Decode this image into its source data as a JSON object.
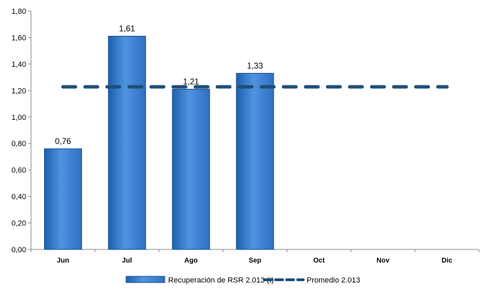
{
  "chart_data": {
    "type": "bar",
    "title": "",
    "xlabel": "",
    "ylabel": "",
    "categories": [
      "Jun",
      "Jul",
      "Ago",
      "Sep",
      "Oct",
      "Nov",
      "Dic"
    ],
    "ylim": [
      0,
      1.8
    ],
    "yticks": [
      "0,00",
      "0,20",
      "0,40",
      "0,60",
      "0,80",
      "1,00",
      "1,20",
      "1,40",
      "1,60",
      "1,80"
    ],
    "grid": false,
    "legend_position": "bottom",
    "series": [
      {
        "name": "Recuperación de RSR 2.013 (t)",
        "kind": "bar",
        "values": [
          0.76,
          1.61,
          1.21,
          1.33,
          null,
          null,
          null
        ],
        "labels": [
          "0,76",
          "1,61",
          "1,21",
          "1,33",
          "",
          "",
          ""
        ],
        "color": "#3d7fcc"
      },
      {
        "name": "Promedio 2.013",
        "kind": "line",
        "style": "dashed",
        "value": 1.2275,
        "color": "#1f4e79"
      }
    ]
  }
}
